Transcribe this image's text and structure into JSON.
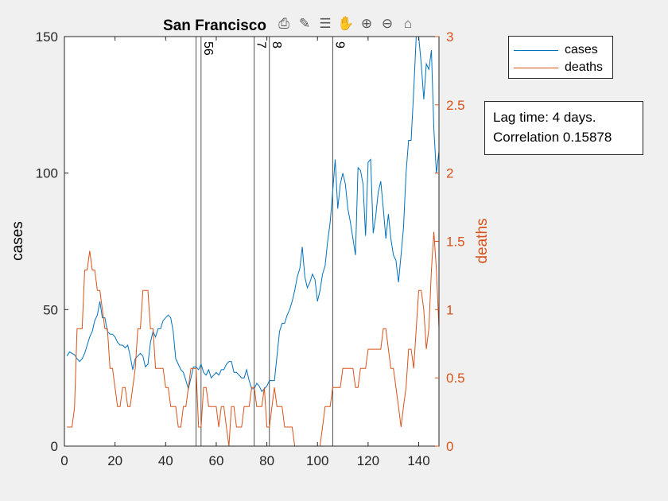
{
  "chart_data": {
    "type": "line",
    "title": "San Francisco",
    "xlabel": "",
    "ylabel_left": "cases",
    "ylabel_right": "deaths",
    "xlim": [
      0,
      148
    ],
    "ylim_left": [
      0,
      150
    ],
    "ylim_right": [
      0,
      3
    ],
    "x_ticks": [
      0,
      20,
      40,
      60,
      80,
      100,
      120,
      140
    ],
    "y_ticks_left": [
      0,
      50,
      100,
      150
    ],
    "y_ticks_right": [
      "0",
      "0.5",
      "1",
      "1.5",
      "2",
      "2.5",
      "3"
    ],
    "grid": false,
    "legend_position": "outside-top-right",
    "colors": {
      "cases": "#0072BD",
      "deaths": "#D95319"
    },
    "series": [
      {
        "name": "cases",
        "axis": "left",
        "points": [
          [
            1,
            33
          ],
          [
            2,
            34.5
          ],
          [
            3,
            34
          ],
          [
            4,
            33.5
          ],
          [
            5,
            32
          ],
          [
            6,
            31
          ],
          [
            7,
            32
          ],
          [
            8,
            34
          ],
          [
            9,
            37
          ],
          [
            10,
            40
          ],
          [
            11,
            42
          ],
          [
            12,
            46
          ],
          [
            13,
            48
          ],
          [
            14,
            53
          ],
          [
            15,
            47
          ],
          [
            16,
            47
          ],
          [
            17,
            42
          ],
          [
            18,
            41
          ],
          [
            19,
            41
          ],
          [
            20,
            40
          ],
          [
            21,
            38
          ],
          [
            22,
            37
          ],
          [
            23,
            37
          ],
          [
            24,
            36
          ],
          [
            25,
            37
          ],
          [
            26,
            33
          ],
          [
            27,
            28
          ],
          [
            28,
            32
          ],
          [
            29,
            33
          ],
          [
            30,
            34
          ],
          [
            31,
            33
          ],
          [
            32,
            29
          ],
          [
            33,
            30
          ],
          [
            34,
            38
          ],
          [
            35,
            42
          ],
          [
            36,
            40
          ],
          [
            37,
            43
          ],
          [
            38,
            43
          ],
          [
            39,
            46
          ],
          [
            40,
            47
          ],
          [
            41,
            48
          ],
          [
            42,
            47
          ],
          [
            43,
            42
          ],
          [
            44,
            32
          ],
          [
            45,
            30
          ],
          [
            46,
            28
          ],
          [
            47,
            27
          ],
          [
            48,
            24
          ],
          [
            49,
            21
          ],
          [
            50,
            25
          ],
          [
            51,
            29
          ],
          [
            52,
            29
          ],
          [
            53,
            28
          ],
          [
            54,
            30
          ],
          [
            55,
            27
          ],
          [
            56,
            26
          ],
          [
            57,
            28
          ],
          [
            58,
            25
          ],
          [
            59,
            26
          ],
          [
            60,
            27
          ],
          [
            61,
            26
          ],
          [
            62,
            28
          ],
          [
            63,
            28
          ],
          [
            64,
            30
          ],
          [
            65,
            31
          ],
          [
            66,
            31
          ],
          [
            67,
            27
          ],
          [
            68,
            27
          ],
          [
            69,
            26
          ],
          [
            70,
            25
          ],
          [
            71,
            25
          ],
          [
            72,
            28
          ],
          [
            73,
            24
          ],
          [
            74,
            21
          ],
          [
            75,
            21
          ],
          [
            76,
            23
          ],
          [
            77,
            22
          ],
          [
            78,
            20
          ],
          [
            79,
            21
          ],
          [
            80,
            22
          ],
          [
            81,
            24
          ],
          [
            82,
            24
          ],
          [
            83,
            24
          ],
          [
            84,
            33
          ],
          [
            85,
            42
          ],
          [
            86,
            45
          ],
          [
            87,
            45
          ],
          [
            88,
            48
          ],
          [
            89,
            50
          ],
          [
            90,
            53
          ],
          [
            91,
            57
          ],
          [
            92,
            62
          ],
          [
            93,
            65
          ],
          [
            94,
            73
          ],
          [
            95,
            62
          ],
          [
            96,
            58
          ],
          [
            97,
            60
          ],
          [
            98,
            63
          ],
          [
            99,
            61
          ],
          [
            100,
            53
          ],
          [
            101,
            57
          ],
          [
            102,
            63
          ],
          [
            103,
            66
          ],
          [
            104,
            75
          ],
          [
            105,
            82
          ],
          [
            106,
            93
          ],
          [
            107,
            105
          ],
          [
            108,
            87
          ],
          [
            109,
            96
          ],
          [
            110,
            100
          ],
          [
            111,
            96
          ],
          [
            112,
            87
          ],
          [
            113,
            82
          ],
          [
            114,
            76
          ],
          [
            115,
            70
          ],
          [
            116,
            102
          ],
          [
            117,
            101
          ],
          [
            118,
            96
          ],
          [
            119,
            77
          ],
          [
            120,
            104
          ],
          [
            121,
            105
          ],
          [
            122,
            78
          ],
          [
            123,
            84
          ],
          [
            124,
            93
          ],
          [
            125,
            97
          ],
          [
            126,
            87
          ],
          [
            127,
            76
          ],
          [
            128,
            85
          ],
          [
            129,
            76
          ],
          [
            130,
            70
          ],
          [
            131,
            68
          ],
          [
            132,
            60
          ],
          [
            133,
            70
          ],
          [
            134,
            80
          ],
          [
            135,
            100
          ],
          [
            136,
            112
          ],
          [
            137,
            112
          ],
          [
            138,
            130
          ],
          [
            139,
            150
          ],
          [
            140,
            150
          ],
          [
            141,
            140
          ],
          [
            142,
            127
          ],
          [
            143,
            140
          ],
          [
            144,
            138
          ],
          [
            145,
            145
          ],
          [
            146,
            116
          ],
          [
            147,
            100
          ],
          [
            148,
            108
          ]
        ]
      },
      {
        "name": "deaths",
        "axis": "right",
        "points": [
          [
            1,
            0.14
          ],
          [
            2,
            0.14
          ],
          [
            3,
            0.14
          ],
          [
            4,
            0.28
          ],
          [
            5,
            0.86
          ],
          [
            6,
            0.86
          ],
          [
            7,
            0.86
          ],
          [
            8,
            1.29
          ],
          [
            9,
            1.29
          ],
          [
            10,
            1.43
          ],
          [
            11,
            1.29
          ],
          [
            12,
            1.29
          ],
          [
            13,
            1.14
          ],
          [
            14,
            1.14
          ],
          [
            15,
            1.0
          ],
          [
            16,
            0.86
          ],
          [
            17,
            0.86
          ],
          [
            18,
            0.57
          ],
          [
            19,
            0.57
          ],
          [
            20,
            0.43
          ],
          [
            21,
            0.29
          ],
          [
            22,
            0.29
          ],
          [
            23,
            0.43
          ],
          [
            24,
            0.43
          ],
          [
            25,
            0.29
          ],
          [
            26,
            0.29
          ],
          [
            27,
            0.43
          ],
          [
            28,
            0.57
          ],
          [
            29,
            0.86
          ],
          [
            30,
            0.86
          ],
          [
            31,
            1.14
          ],
          [
            32,
            1.14
          ],
          [
            33,
            1.14
          ],
          [
            34,
            0.86
          ],
          [
            35,
            0.86
          ],
          [
            36,
            0.57
          ],
          [
            37,
            0.57
          ],
          [
            38,
            0.57
          ],
          [
            39,
            0.57
          ],
          [
            40,
            0.43
          ],
          [
            41,
            0.43
          ],
          [
            42,
            0.29
          ],
          [
            43,
            0.29
          ],
          [
            44,
            0.29
          ],
          [
            45,
            0.14
          ],
          [
            46,
            0.14
          ],
          [
            47,
            0.29
          ],
          [
            48,
            0.29
          ],
          [
            49,
            0.43
          ],
          [
            50,
            0.57
          ],
          [
            51,
            0.57
          ],
          [
            52,
            0.57
          ],
          [
            53,
            0.14
          ],
          [
            54,
            0.14
          ],
          [
            55,
            0.43
          ],
          [
            56,
            0.43
          ],
          [
            57,
            0.29
          ],
          [
            58,
            0.29
          ],
          [
            59,
            0.29
          ],
          [
            60,
            0.29
          ],
          [
            61,
            0.14
          ],
          [
            62,
            0.29
          ],
          [
            63,
            0.29
          ],
          [
            64,
            0.14
          ],
          [
            65,
            0.0
          ],
          [
            66,
            0.29
          ],
          [
            67,
            0.29
          ],
          [
            68,
            0.14
          ],
          [
            69,
            0.14
          ],
          [
            70,
            0.14
          ],
          [
            71,
            0.29
          ],
          [
            72,
            0.29
          ],
          [
            73,
            0.29
          ],
          [
            74,
            0.43
          ],
          [
            75,
            0.43
          ],
          [
            76,
            0.29
          ],
          [
            77,
            0.29
          ],
          [
            78,
            0.29
          ],
          [
            79,
            0.43
          ],
          [
            80,
            0.14
          ],
          [
            81,
            0.14
          ],
          [
            82,
            0.29
          ],
          [
            83,
            0.43
          ],
          [
            84,
            0.29
          ],
          [
            85,
            0.29
          ],
          [
            86,
            0.29
          ],
          [
            87,
            0.14
          ],
          [
            88,
            0.14
          ],
          [
            89,
            0.14
          ],
          [
            90,
            0.14
          ],
          [
            91,
            0.0
          ],
          [
            92,
            0.0
          ],
          [
            93,
            0.0
          ],
          [
            94,
            0.0
          ],
          [
            95,
            0.0
          ],
          [
            96,
            0.0
          ],
          [
            97,
            0.0
          ],
          [
            98,
            0.0
          ],
          [
            99,
            0.0
          ],
          [
            100,
            0.0
          ],
          [
            101,
            0.0
          ],
          [
            102,
            0.14
          ],
          [
            103,
            0.29
          ],
          [
            104,
            0.29
          ],
          [
            105,
            0.29
          ],
          [
            106,
            0.43
          ],
          [
            107,
            0.43
          ],
          [
            108,
            0.43
          ],
          [
            109,
            0.43
          ],
          [
            110,
            0.57
          ],
          [
            111,
            0.57
          ],
          [
            112,
            0.57
          ],
          [
            113,
            0.57
          ],
          [
            114,
            0.57
          ],
          [
            115,
            0.43
          ],
          [
            116,
            0.43
          ],
          [
            117,
            0.57
          ],
          [
            118,
            0.57
          ],
          [
            119,
            0.57
          ],
          [
            120,
            0.71
          ],
          [
            121,
            0.71
          ],
          [
            122,
            0.71
          ],
          [
            123,
            0.71
          ],
          [
            124,
            0.71
          ],
          [
            125,
            0.71
          ],
          [
            126,
            0.86
          ],
          [
            127,
            0.86
          ],
          [
            128,
            0.71
          ],
          [
            129,
            0.57
          ],
          [
            130,
            0.57
          ],
          [
            131,
            0.43
          ],
          [
            132,
            0.29
          ],
          [
            133,
            0.14
          ],
          [
            134,
            0.29
          ],
          [
            135,
            0.43
          ],
          [
            136,
            0.71
          ],
          [
            137,
            0.71
          ],
          [
            138,
            0.57
          ],
          [
            139,
            0.86
          ],
          [
            140,
            1.14
          ],
          [
            141,
            1.14
          ],
          [
            142,
            1.0
          ],
          [
            143,
            0.71
          ],
          [
            144,
            0.86
          ],
          [
            145,
            1.29
          ],
          [
            146,
            1.57
          ],
          [
            147,
            1.29
          ],
          [
            148,
            0.86
          ]
        ]
      }
    ],
    "vlines": [
      {
        "x": 52,
        "label": ""
      },
      {
        "x": 54,
        "label": "56"
      },
      {
        "x": 75,
        "label": "7"
      },
      {
        "x": 81,
        "label": "8"
      },
      {
        "x": 106,
        "label": "9"
      }
    ]
  },
  "legend": {
    "cases_label": "cases",
    "deaths_label": "deaths"
  },
  "annotation": {
    "line1": "Lag time: 4 days.",
    "line2": "Correlation 0.15878"
  },
  "toolbar": {
    "icons": [
      "export-icon",
      "brush-icon",
      "datatip-icon",
      "pan-icon",
      "zoom-in-icon",
      "zoom-out-icon",
      "home-icon"
    ],
    "glyphs": [
      "⎙",
      "✎",
      "☰",
      "✋",
      "⊕",
      "⊖",
      "⌂"
    ]
  }
}
